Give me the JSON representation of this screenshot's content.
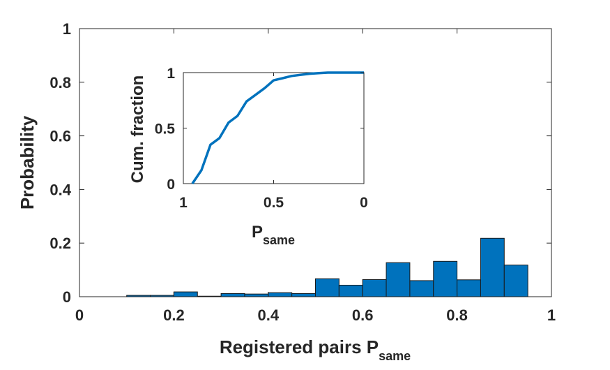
{
  "chart_data": [
    {
      "type": "bar",
      "xlabel": "Registered pairs P",
      "xlabel_sub": "same",
      "ylabel": "Probability",
      "xlim": [
        0,
        1
      ],
      "ylim": [
        0,
        1
      ],
      "xticks": [
        "0",
        "0.2",
        "0.4",
        "0.6",
        "0.8",
        "1"
      ],
      "yticks": [
        "0",
        "0.2",
        "0.4",
        "0.6",
        "0.8",
        "1"
      ],
      "bin_width": 0.05,
      "bins": [
        {
          "x0": 0.1,
          "value": 0.005
        },
        {
          "x0": 0.15,
          "value": 0.005
        },
        {
          "x0": 0.2,
          "value": 0.018
        },
        {
          "x0": 0.25,
          "value": 0.002
        },
        {
          "x0": 0.3,
          "value": 0.012
        },
        {
          "x0": 0.35,
          "value": 0.01
        },
        {
          "x0": 0.4,
          "value": 0.015
        },
        {
          "x0": 0.45,
          "value": 0.012
        },
        {
          "x0": 0.5,
          "value": 0.067
        },
        {
          "x0": 0.55,
          "value": 0.043
        },
        {
          "x0": 0.6,
          "value": 0.064
        },
        {
          "x0": 0.65,
          "value": 0.127
        },
        {
          "x0": 0.7,
          "value": 0.06
        },
        {
          "x0": 0.75,
          "value": 0.132
        },
        {
          "x0": 0.8,
          "value": 0.063
        },
        {
          "x0": 0.85,
          "value": 0.218
        },
        {
          "x0": 0.9,
          "value": 0.118
        }
      ],
      "bar_color": "#0072BD",
      "grid": false
    },
    {
      "type": "line",
      "xlabel": "P",
      "xlabel_sub": "same",
      "ylabel": "Cum. fraction",
      "xlim": [
        1,
        0
      ],
      "x_reversed": true,
      "ylim": [
        0,
        1
      ],
      "xticks": [
        "1",
        "0.5",
        "0"
      ],
      "yticks": [
        "0",
        "0.5",
        "1"
      ],
      "x": [
        0.95,
        0.9,
        0.85,
        0.8,
        0.75,
        0.7,
        0.65,
        0.6,
        0.55,
        0.5,
        0.45,
        0.4,
        0.35,
        0.3,
        0.25,
        0.2,
        0.15,
        0.1,
        0.05,
        0.0
      ],
      "y": [
        0.0,
        0.12,
        0.35,
        0.41,
        0.55,
        0.61,
        0.74,
        0.8,
        0.86,
        0.93,
        0.95,
        0.97,
        0.98,
        0.99,
        0.995,
        1.0,
        1.0,
        1.0,
        1.0,
        1.0
      ],
      "line_color": "#0072BD",
      "grid": false
    }
  ]
}
